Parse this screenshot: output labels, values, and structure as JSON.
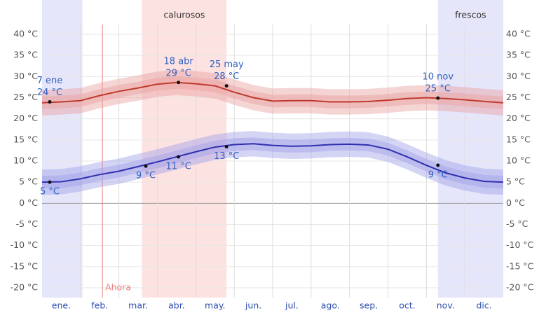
{
  "chart_data": {
    "type": "line",
    "categories": [
      "ene.",
      "feb.",
      "mar.",
      "abr.",
      "may.",
      "jun.",
      "jul.",
      "ago.",
      "sep.",
      "oct.",
      "nov.",
      "dic."
    ],
    "x": [
      0,
      0.5,
      1,
      1.5,
      2,
      2.5,
      3,
      3.5,
      4,
      4.5,
      5,
      5.5,
      6,
      6.5,
      7,
      7.5,
      8,
      8.5,
      9,
      9.5,
      10,
      10.5,
      11,
      11.5,
      12
    ],
    "xlim": [
      0,
      12
    ],
    "series": [
      {
        "color": "#c0392b",
        "band_color": "#e8a0a0",
        "values": [
          23.8,
          24,
          24.3,
          25.5,
          26.5,
          27.3,
          28.2,
          28.6,
          28.3,
          27.8,
          26.3,
          25,
          24.2,
          24.3,
          24.3,
          24,
          24,
          24.1,
          24.4,
          24.8,
          25,
          24.8,
          24.5,
          24.1,
          23.8
        ]
      },
      {
        "color": "#3030b0",
        "band_color": "#9fa0e8",
        "values": [
          5,
          5.1,
          5.8,
          6.8,
          7.6,
          8.7,
          9.8,
          11,
          12.2,
          13.3,
          13.9,
          14.1,
          13.7,
          13.5,
          13.6,
          13.9,
          14,
          13.8,
          12.8,
          11,
          9,
          7.2,
          6,
          5.2,
          5
        ]
      }
    ],
    "bands": [
      1.5,
      3
    ],
    "ylim": [
      -20,
      40
    ],
    "yticks": [
      {
        "value": -20,
        "label": "-20 °C"
      },
      {
        "value": -15,
        "label": "-15 °C"
      },
      {
        "value": -10,
        "label": "-10 °C"
      },
      {
        "value": -5,
        "label": "-5 °C"
      },
      {
        "value": 0,
        "label": "0 °C"
      },
      {
        "value": 5,
        "label": "5 °C"
      },
      {
        "value": 10,
        "label": "10 °C"
      },
      {
        "value": 15,
        "label": "15 °C"
      },
      {
        "value": 20,
        "label": "20 °C"
      },
      {
        "value": 25,
        "label": "25 °C"
      },
      {
        "value": 30,
        "label": "30 °C"
      },
      {
        "value": 35,
        "label": "35 °C"
      },
      {
        "value": 40,
        "label": "40 °C"
      }
    ],
    "grid": true,
    "regions": [
      {
        "label": "calurosos",
        "spans": [
          [
            2.6,
            4.8
          ]
        ],
        "color": "#fde2e2"
      },
      {
        "label": "frescos",
        "spans": [
          [
            0,
            1.05
          ],
          [
            10.3,
            12
          ]
        ],
        "color": "#e6e6fb"
      }
    ],
    "now": {
      "label": "Ahora",
      "x": 1.57,
      "color": "#e88080"
    },
    "annotations": [
      {
        "series": 0,
        "x": 0.2,
        "value": 24,
        "date": "7 ene",
        "label": "24 °C"
      },
      {
        "series": 0,
        "x": 3.55,
        "value": 28.6,
        "date": "18 abr",
        "label": "29 °C"
      },
      {
        "series": 0,
        "x": 4.8,
        "value": 27.8,
        "date": "25 may",
        "label": "28 °C"
      },
      {
        "series": 0,
        "x": 10.3,
        "value": 24.9,
        "date": "10 nov",
        "label": "25 °C"
      },
      {
        "series": 1,
        "x": 0.2,
        "value": 5,
        "label": "5 °C"
      },
      {
        "series": 1,
        "x": 2.7,
        "value": 8.8,
        "label": "9 °C"
      },
      {
        "series": 1,
        "x": 3.55,
        "value": 11,
        "label": "11 °C"
      },
      {
        "series": 1,
        "x": 4.8,
        "value": 13.4,
        "label": "13 °C"
      },
      {
        "series": 1,
        "x": 10.3,
        "value": 9,
        "label": "9 °C"
      }
    ]
  }
}
